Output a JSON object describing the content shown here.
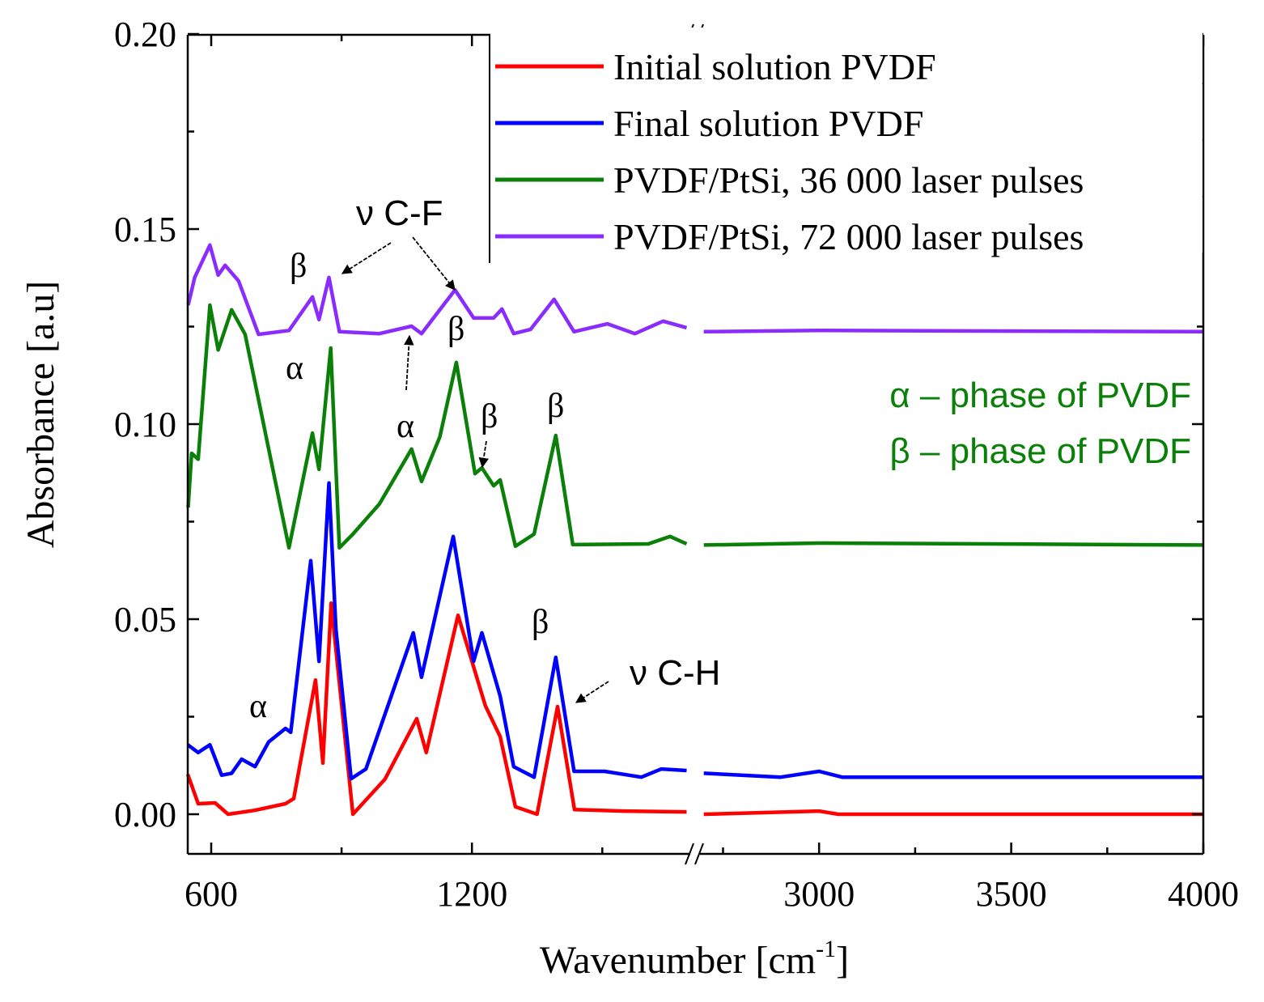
{
  "chart_data": {
    "type": "line",
    "title": "",
    "xlabel": "Wavenumber [cm",
    "xlabel_sup": "-1",
    "xlabel_end": "]",
    "ylabel": "Absorbance [a.u]",
    "ylim": [
      -0.01,
      0.2
    ],
    "x_segments": [
      {
        "xlim": [
          546,
          1710
        ],
        "major_ticks": [
          600,
          1200
        ],
        "minor_ticks": [
          900,
          1500
        ]
      },
      {
        "xlim": [
          2690,
          4000
        ],
        "major_ticks": [
          3000,
          3500,
          4000
        ],
        "minor_ticks": [
          2750,
          3250,
          3750
        ]
      }
    ],
    "x_tick_labels": [
      "600",
      "1200",
      "3000",
      "3500",
      "4000"
    ],
    "y_ticks": [
      0.0,
      0.05,
      0.1,
      0.15,
      0.2
    ],
    "y_tick_labels": [
      "0.00",
      "0.05",
      "0.10",
      "0.15",
      "0.20"
    ],
    "axis_break": true,
    "grid": false,
    "legend_position": "top-right",
    "series": [
      {
        "name": "Initial solution PVDF",
        "color": "#ff0000",
        "points": [
          [
            546,
            0.0102
          ],
          [
            570,
            0.0027
          ],
          [
            609,
            0.0029
          ],
          [
            639,
            0.0
          ],
          [
            700,
            0.001
          ],
          [
            771,
            0.0027
          ],
          [
            790,
            0.004
          ],
          [
            840,
            0.0344
          ],
          [
            857,
            0.0131
          ],
          [
            876,
            0.0541
          ],
          [
            926,
            0.0
          ],
          [
            1000,
            0.009
          ],
          [
            1073,
            0.0245
          ],
          [
            1095,
            0.0158
          ],
          [
            1168,
            0.051
          ],
          [
            1231,
            0.0278
          ],
          [
            1265,
            0.0199
          ],
          [
            1300,
            0.0019
          ],
          [
            1350,
            0.0
          ],
          [
            1397,
            0.0276
          ],
          [
            1436,
            0.0012
          ],
          [
            1550,
            0.0008
          ],
          [
            1694,
            0.0006
          ],
          [
            2700,
            0.0
          ],
          [
            3000,
            0.0008
          ],
          [
            3050,
            0.0
          ],
          [
            4000,
            0.0
          ]
        ]
      },
      {
        "name": "Final solution PVDF",
        "color": "#0000ff",
        "points": [
          [
            546,
            0.0178
          ],
          [
            570,
            0.0158
          ],
          [
            597,
            0.0178
          ],
          [
            624,
            0.01
          ],
          [
            647,
            0.0105
          ],
          [
            670,
            0.0141
          ],
          [
            701,
            0.0122
          ],
          [
            732,
            0.0185
          ],
          [
            771,
            0.022
          ],
          [
            783,
            0.021
          ],
          [
            829,
            0.065
          ],
          [
            848,
            0.0392
          ],
          [
            871,
            0.0849
          ],
          [
            887,
            0.0475
          ],
          [
            922,
            0.0091
          ],
          [
            956,
            0.0116
          ],
          [
            1065,
            0.0465
          ],
          [
            1084,
            0.0351
          ],
          [
            1157,
            0.0712
          ],
          [
            1204,
            0.0392
          ],
          [
            1223,
            0.0465
          ],
          [
            1265,
            0.0303
          ],
          [
            1296,
            0.0122
          ],
          [
            1343,
            0.0095
          ],
          [
            1393,
            0.0402
          ],
          [
            1435,
            0.011
          ],
          [
            1505,
            0.011
          ],
          [
            1590,
            0.0095
          ],
          [
            1636,
            0.0116
          ],
          [
            1694,
            0.0112
          ],
          [
            2700,
            0.0105
          ],
          [
            2900,
            0.0095
          ],
          [
            3000,
            0.011
          ],
          [
            3060,
            0.0095
          ],
          [
            4000,
            0.0095
          ]
        ]
      },
      {
        "name": "PVDF/PtSi, 36 000 laser pulses",
        "color": "#0a8008",
        "points": [
          [
            547,
            0.0786
          ],
          [
            555,
            0.0925
          ],
          [
            570,
            0.091
          ],
          [
            597,
            0.1305
          ],
          [
            616,
            0.119
          ],
          [
            647,
            0.1293
          ],
          [
            678,
            0.123
          ],
          [
            779,
            0.0683
          ],
          [
            833,
            0.0977
          ],
          [
            848,
            0.0884
          ],
          [
            875,
            0.1195
          ],
          [
            895,
            0.0683
          ],
          [
            926,
            0.0718
          ],
          [
            987,
            0.0795
          ],
          [
            1061,
            0.0936
          ],
          [
            1084,
            0.0853
          ],
          [
            1126,
            0.0967
          ],
          [
            1164,
            0.1158
          ],
          [
            1207,
            0.0873
          ],
          [
            1223,
            0.0888
          ],
          [
            1250,
            0.0842
          ],
          [
            1265,
            0.0857
          ],
          [
            1300,
            0.0687
          ],
          [
            1343,
            0.0718
          ],
          [
            1393,
            0.0971
          ],
          [
            1432,
            0.0691
          ],
          [
            1606,
            0.0693
          ],
          [
            1656,
            0.0712
          ],
          [
            1694,
            0.0693
          ],
          [
            2700,
            0.069
          ],
          [
            3000,
            0.0695
          ],
          [
            4000,
            0.069
          ]
        ]
      },
      {
        "name": "PVDF/PtSi, 72 000 laser pulses",
        "color": "#8b2cff",
        "points": [
          [
            547,
            0.1305
          ],
          [
            562,
            0.1376
          ],
          [
            597,
            0.1459
          ],
          [
            616,
            0.1382
          ],
          [
            632,
            0.1407
          ],
          [
            663,
            0.1367
          ],
          [
            709,
            0.123
          ],
          [
            779,
            0.124
          ],
          [
            833,
            0.1326
          ],
          [
            848,
            0.1268
          ],
          [
            871,
            0.1376
          ],
          [
            895,
            0.1237
          ],
          [
            987,
            0.1232
          ],
          [
            1061,
            0.1251
          ],
          [
            1084,
            0.1232
          ],
          [
            1161,
            0.1344
          ],
          [
            1204,
            0.1272
          ],
          [
            1250,
            0.1272
          ],
          [
            1269,
            0.1295
          ],
          [
            1296,
            0.1232
          ],
          [
            1335,
            0.1243
          ],
          [
            1389,
            0.132
          ],
          [
            1435,
            0.1237
          ],
          [
            1512,
            0.1257
          ],
          [
            1575,
            0.1232
          ],
          [
            1640,
            0.1264
          ],
          [
            1694,
            0.1247
          ],
          [
            2700,
            0.1237
          ],
          [
            3000,
            0.124
          ],
          [
            4000,
            0.1237
          ]
        ]
      }
    ],
    "annotations": {
      "vCF": "ν C-F",
      "vCH": "ν C-H",
      "alpha": "α",
      "beta": "β",
      "phase_alpha": "α – phase of PVDF",
      "phase_beta": "β – phase of PVDF",
      "phase_color": "#0a8008"
    }
  }
}
